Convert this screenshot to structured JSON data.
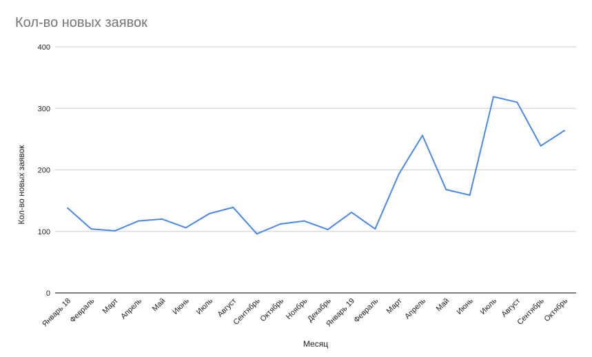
{
  "chart_data": {
    "type": "line",
    "title": "Кол-во новых заявок",
    "xlabel": "Месяц",
    "ylabel": "Кол-во новых заявок",
    "ylim": [
      0,
      400
    ],
    "yticks": [
      "0",
      "100",
      "200",
      "300",
      "400"
    ],
    "grid": true,
    "legend": "none",
    "line_color": "#4a86e8",
    "categories": [
      "Январь 18",
      "Февраль",
      "Март",
      "Апрель",
      "Май",
      "Июнь",
      "Июль",
      "Август",
      "Сентябрь",
      "Октябрь",
      "Ноябрь",
      "Декабрь",
      "Январь 19",
      "Февраль",
      "Март",
      "Апрель",
      "Май",
      "Июнь",
      "Июль",
      "Август",
      "Сентябрь",
      "Октябрь"
    ],
    "series": [
      {
        "values": [
          138,
          104,
          101,
          117,
          120,
          106,
          129,
          139,
          96,
          112,
          117,
          103,
          131,
          104,
          193,
          256,
          168,
          159,
          319,
          310,
          239,
          264
        ]
      }
    ]
  }
}
